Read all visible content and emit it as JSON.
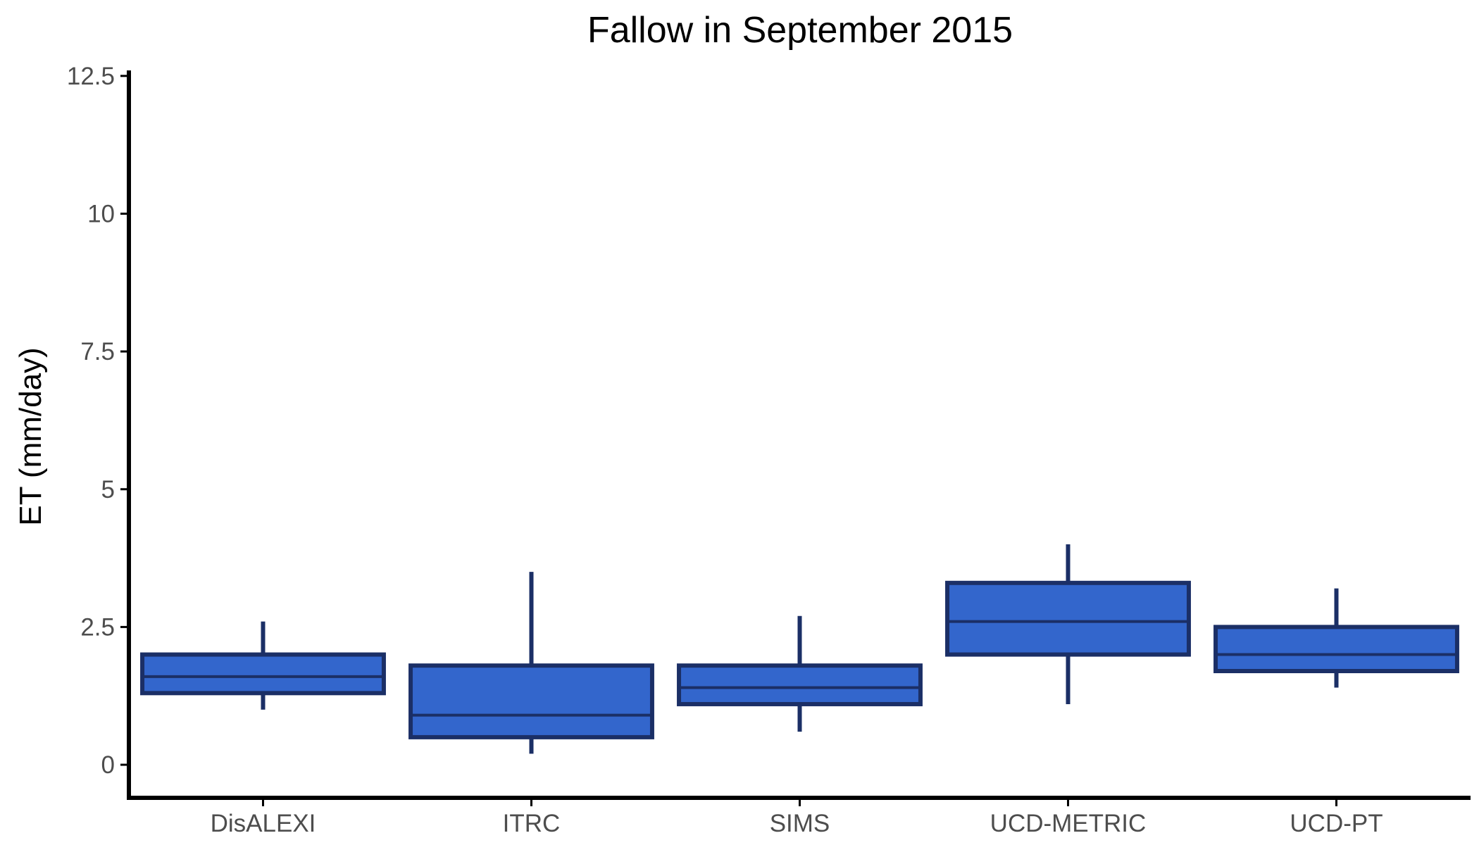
{
  "chart_data": {
    "type": "boxplot",
    "title": "Fallow in September 2015",
    "xlabel": "",
    "ylabel": "ET (mm/day)",
    "ylim": [
      -0.6,
      12.6
    ],
    "yticks": [
      0,
      2.5,
      5,
      7.5,
      10,
      12.5
    ],
    "ytick_labels": [
      "0",
      "2.5",
      "5",
      "7.5",
      "10",
      "12.5"
    ],
    "grid": false,
    "legend": "none",
    "categories": [
      "DisALEXI",
      "ITRC",
      "SIMS",
      "UCD-METRIC",
      "UCD-PT"
    ],
    "boxes": [
      {
        "category": "DisALEXI",
        "min": 1.0,
        "q1": 1.3,
        "median": 1.6,
        "q3": 2.0,
        "max": 2.6
      },
      {
        "category": "ITRC",
        "min": 0.2,
        "q1": 0.5,
        "median": 0.9,
        "q3": 1.8,
        "max": 3.5
      },
      {
        "category": "SIMS",
        "min": 0.6,
        "q1": 1.1,
        "median": 1.4,
        "q3": 1.8,
        "max": 2.7
      },
      {
        "category": "UCD-METRIC",
        "min": 1.1,
        "q1": 2.0,
        "median": 2.6,
        "q3": 3.3,
        "max": 4.0
      },
      {
        "category": "UCD-PT",
        "min": 1.4,
        "q1": 1.7,
        "median": 2.0,
        "q3": 2.5,
        "max": 3.2
      }
    ],
    "colors": {
      "box_fill": "#3366cc",
      "box_line": "#1b2f66",
      "axis": "#000000",
      "tick_text": "#4d4d4d"
    }
  }
}
